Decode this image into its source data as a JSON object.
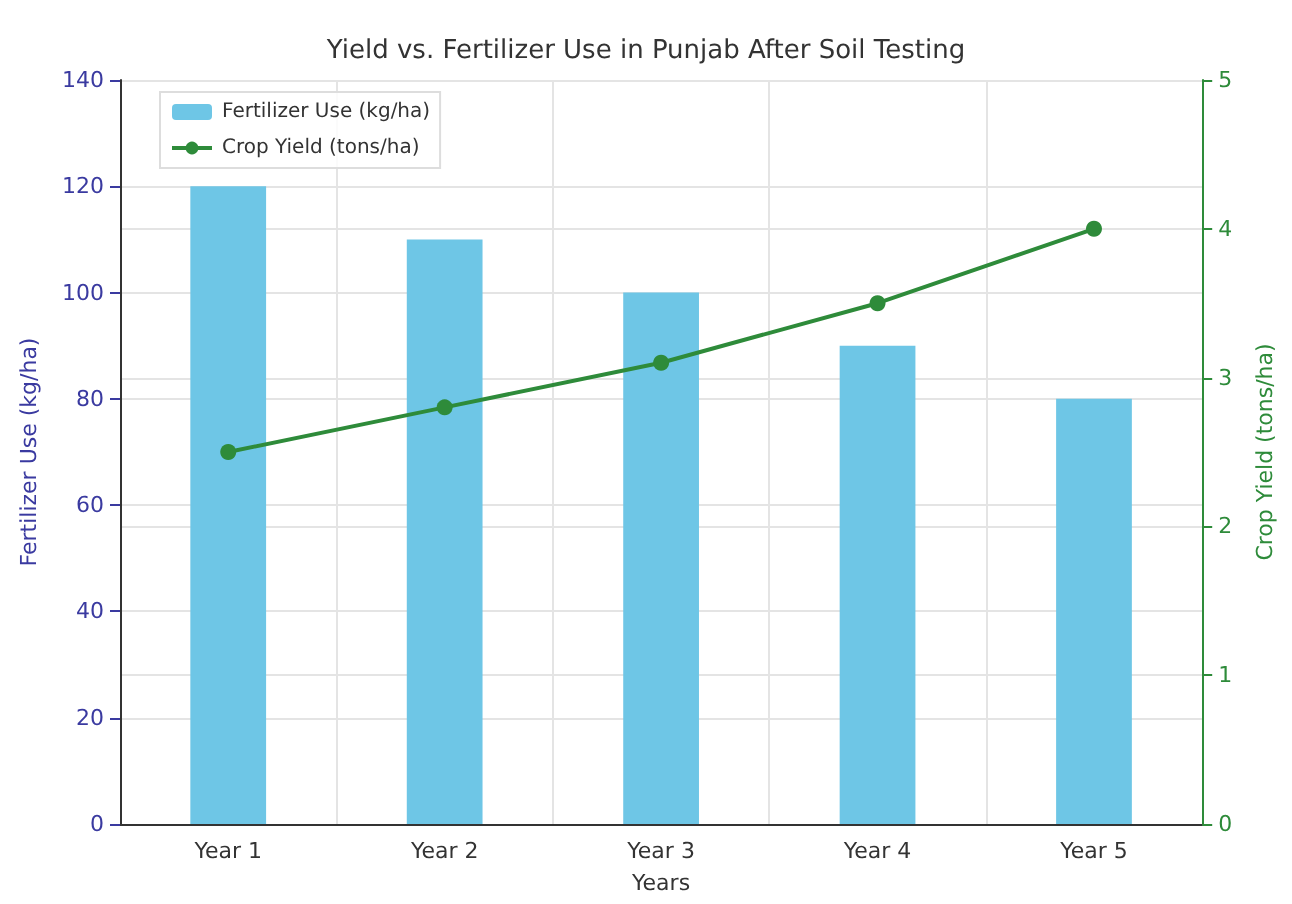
{
  "chart_data": {
    "type": "bar",
    "title": "Yield vs. Fertilizer Use in Punjab After Soil Testing",
    "xlabel": "Years",
    "ylabel": "Fertilizer Use (kg/ha)",
    "y2label": "Crop Yield (tons/ha)",
    "categories": [
      "Year 1",
      "Year 2",
      "Year 3",
      "Year 4",
      "Year 5"
    ],
    "series": [
      {
        "name": "Fertilizer Use (kg/ha)",
        "color": "#6ec6e6",
        "values": [
          120,
          110,
          100,
          90,
          80
        ]
      },
      {
        "name": "Crop Yield (tons/ha)",
        "type": "line",
        "axis": "y2",
        "color": "#2e8b3a",
        "values": [
          2.5,
          2.8,
          3.1,
          3.5,
          4.0
        ]
      }
    ],
    "ylim": [
      0,
      140
    ],
    "yticks": [
      0,
      20,
      40,
      60,
      80,
      100,
      120,
      140
    ],
    "y2lim": [
      0,
      5
    ],
    "y2ticks": [
      0,
      1,
      2,
      3,
      4,
      5
    ],
    "grid": true,
    "legend": "top left",
    "marker": "circle"
  }
}
